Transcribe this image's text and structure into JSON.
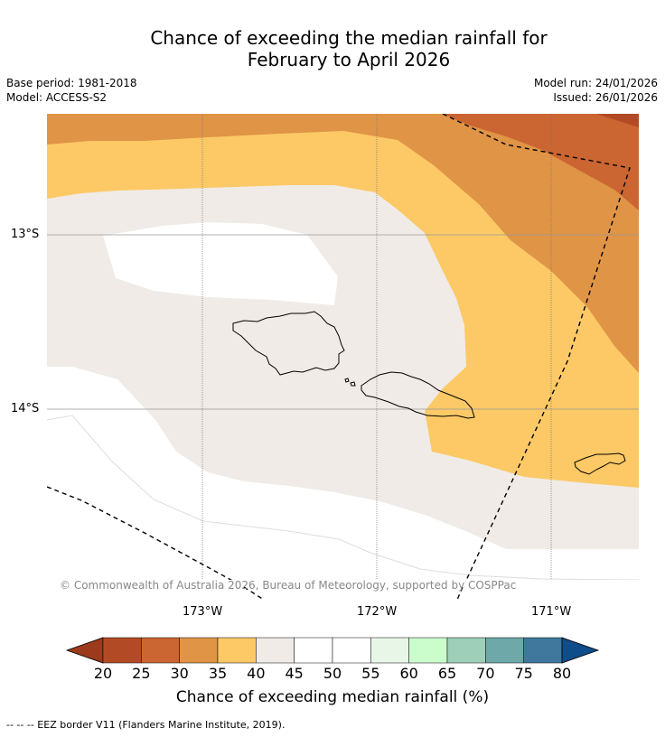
{
  "title_line1": "Chance of exceeding the median rainfall for",
  "title_line2": "February to April 2026",
  "base_period": "Base period: 1981-2018",
  "model": "Model: ACCESS-S2",
  "model_run": "Model run: 24/01/2026",
  "issued": "Issued: 26/01/2026",
  "lat_labels": [
    "13°S",
    "14°S"
  ],
  "lon_labels": [
    "173°W",
    "172°W",
    "171°W"
  ],
  "copyright": "© Commonwealth of Australia 2026, Bureau of Meteorology, supported by COSPPac",
  "colorbar": {
    "ticks": [
      "20",
      "25",
      "30",
      "35",
      "40",
      "45",
      "50",
      "55",
      "60",
      "65",
      "70",
      "75",
      "80"
    ],
    "colors": [
      "#9c3a1c",
      "#b34a26",
      "#cb6532",
      "#e09446",
      "#fcc966",
      "#f0ebe6",
      "#ffffff",
      "#ffffff",
      "#e8f6e8",
      "#cbfccb",
      "#9ecfb8",
      "#6ea8a8",
      "#3f789c",
      "#0f4c8a"
    ],
    "label": "Chance of exceeding median rainfall (%)"
  },
  "footnote": "--  --  -- EEZ border V11 (Flanders Marine Institute, 2019)."
}
